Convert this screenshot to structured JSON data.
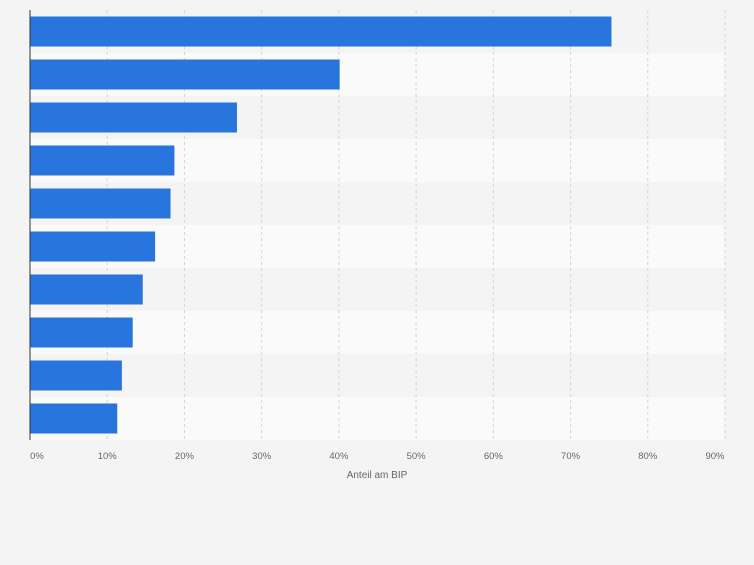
{
  "chart_data": {
    "type": "bar",
    "orientation": "horizontal",
    "categories": [
      "",
      "",
      "",
      "",
      "",
      "",
      "",
      "",
      "",
      ""
    ],
    "values": [
      75.3,
      40.1,
      26.8,
      18.7,
      18.2,
      16.2,
      14.6,
      13.3,
      11.9,
      11.3
    ],
    "xlabel": "Anteil am BIP",
    "ylabel": "",
    "xlim": [
      0,
      90
    ],
    "xticks": [
      "0%",
      "10%",
      "20%",
      "30%",
      "40%",
      "50%",
      "60%",
      "70%",
      "80%",
      "90%"
    ],
    "grid": true,
    "bar_color": "#2876dd",
    "band_colors": [
      "#f4f4f4",
      "#fafafa"
    ]
  }
}
